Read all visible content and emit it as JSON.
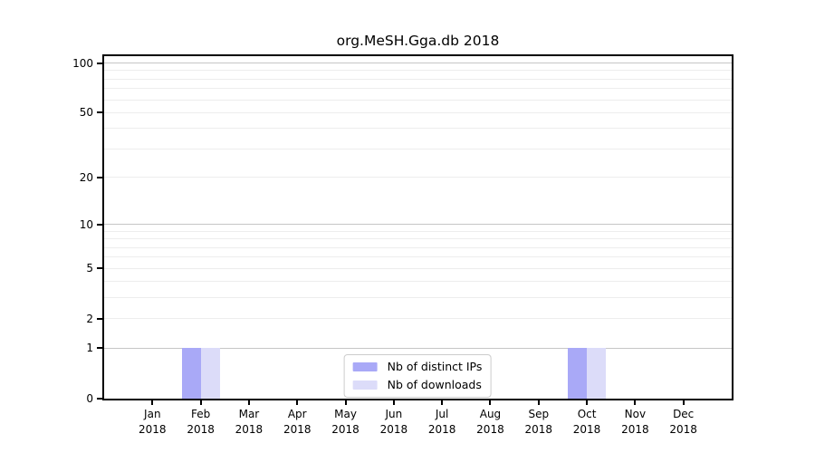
{
  "figure": {
    "title": "org.MeSH.Gga.db 2018"
  },
  "colors": {
    "distinct_ips": "#a9a9f7",
    "downloads": "#dcdcf9",
    "grid_major": "#c6c6c6",
    "grid_minor": "#ededed",
    "axis": "#000000",
    "legend_border": "#cccccc",
    "background": "#ffffff"
  },
  "legend": {
    "items": [
      {
        "label": "Nb of distinct IPs",
        "color": "#a9a9f7"
      },
      {
        "label": "Nb of downloads",
        "color": "#dcdcf9"
      }
    ]
  },
  "chart_data": {
    "type": "bar",
    "title": "org.MeSH.Gga.db 2018",
    "months": [
      "Jan",
      "Feb",
      "Mar",
      "Apr",
      "May",
      "Jun",
      "Jul",
      "Aug",
      "Sep",
      "Oct",
      "Nov",
      "Dec"
    ],
    "year": "2018",
    "categories": [
      "Jan 2018",
      "Feb 2018",
      "Mar 2018",
      "Apr 2018",
      "May 2018",
      "Jun 2018",
      "Jul 2018",
      "Aug 2018",
      "Sep 2018",
      "Oct 2018",
      "Nov 2018",
      "Dec 2018"
    ],
    "series": [
      {
        "name": "Nb of distinct IPs",
        "color": "#a9a9f7",
        "values": [
          0,
          1,
          0,
          0,
          0,
          0,
          0,
          0,
          0,
          1,
          0,
          0
        ]
      },
      {
        "name": "Nb of downloads",
        "color": "#dcdcf9",
        "values": [
          0,
          1,
          0,
          0,
          0,
          0,
          0,
          0,
          0,
          1,
          0,
          0
        ]
      }
    ],
    "xlabel": "",
    "ylabel": "",
    "y_scale": "log1p",
    "ylim": [
      0,
      110
    ],
    "y_ticks": [
      0,
      1,
      2,
      5,
      10,
      20,
      50,
      100
    ],
    "y_major_gridlines": [
      1,
      10,
      100
    ],
    "y_minor_gridlines": [
      2,
      3,
      4,
      5,
      6,
      7,
      8,
      9,
      20,
      30,
      40,
      50,
      60,
      70,
      80,
      90
    ],
    "grid": true,
    "legend_position": "lower center"
  }
}
